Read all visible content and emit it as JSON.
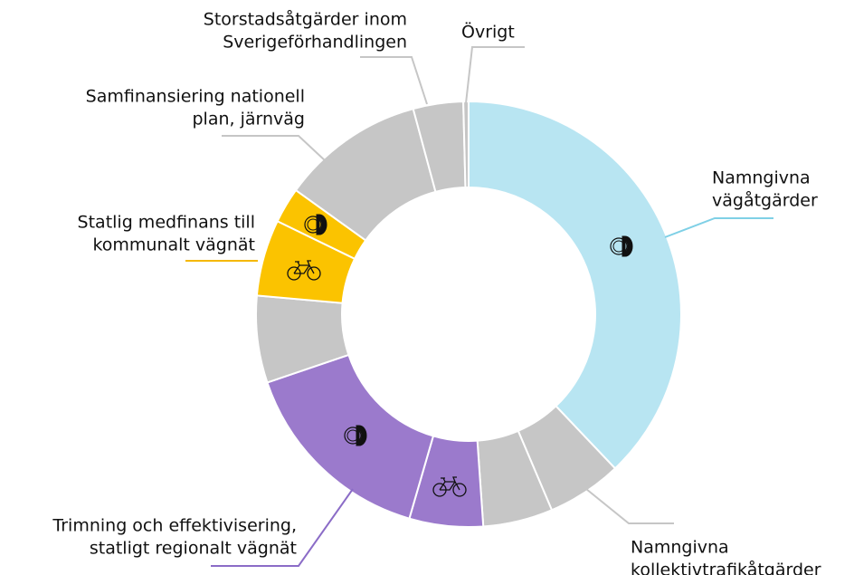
{
  "chart_data": {
    "type": "donut",
    "categories": [
      [
        "Namngivna",
        "vägåtgärder"
      ],
      [
        "Namngivna",
        "kollektivtrafikåtgärder"
      ],
      null,
      null,
      [
        "Trimning och effektivisering,",
        "statligt regionalt vägnät"
      ],
      null,
      [
        "Statlig medfinans till",
        "kommunalt vägnät"
      ],
      null,
      [
        "Samfinansiering nationell",
        "plan, järnväg"
      ],
      [
        "Storstadsåtgärder inom",
        "Sverigeförhandlingen"
      ],
      [
        "Övrigt"
      ]
    ],
    "values": [
      37.9,
      5.7,
      5.3,
      5.6,
      15.3,
      6.6,
      5.8,
      2.7,
      10.9,
      3.8,
      0.4
    ],
    "colors": [
      "#b8e5f2",
      "#c6c6c6",
      "#c6c6c6",
      "#9b7acc",
      "#9b7acc",
      "#c6c6c6",
      "#fbc300",
      "#fbc300",
      "#c6c6c6",
      "#c6c6c6",
      "#c6c6c6"
    ]
  }
}
